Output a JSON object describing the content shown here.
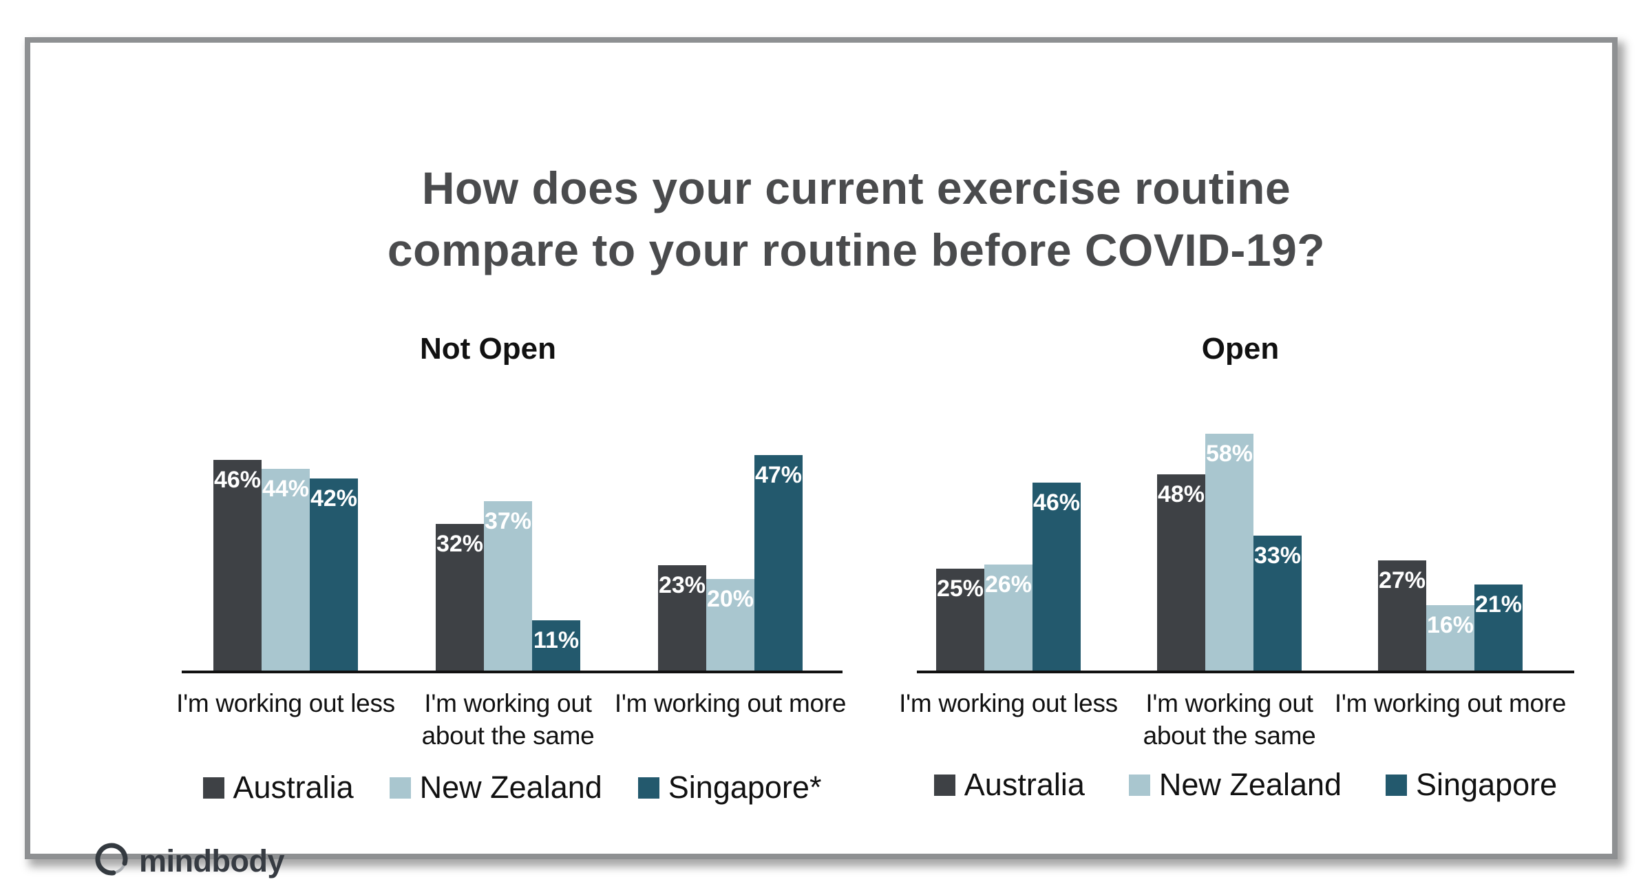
{
  "title": {
    "line1": "How does your current exercise routine",
    "line2": "compare to your routine before COVID-19?"
  },
  "logo": {
    "text": "mindbody",
    "icon": "enso-circle-icon"
  },
  "colors": {
    "australia": "#3E4145",
    "new_zealand": "#A9C6CF",
    "singapore": "#23596D",
    "title_text": "#4A4B4D",
    "card_border": "#8E9092",
    "axis_line": "#111111",
    "value_label_text": "#FFFFFF"
  },
  "chart_data": [
    {
      "type": "bar",
      "title": "Not Open",
      "categories": [
        "I'm working out less",
        "I'm working out about the same",
        "I'm working out more"
      ],
      "categories_lines": [
        [
          "I'm working out less"
        ],
        [
          "I'm working out",
          "about the same"
        ],
        [
          "I'm working out more"
        ]
      ],
      "series": [
        {
          "name": "Australia",
          "color": "#3E4145",
          "values": [
            46,
            32,
            23
          ]
        },
        {
          "name": "New Zealand",
          "color": "#A9C6CF",
          "values": [
            44,
            37,
            20
          ]
        },
        {
          "name": "Singapore",
          "color": "#23596D",
          "values": [
            42,
            11,
            47
          ]
        }
      ],
      "value_suffix": "%",
      "value_labels": "inside-top, white, bold",
      "legend": [
        "Australia",
        "New Zealand",
        "Singapore*"
      ],
      "legend_position": "bottom",
      "grid": false,
      "y_axis_visible": false,
      "ylim": [
        0,
        50
      ]
    },
    {
      "type": "bar",
      "title": "Open",
      "categories": [
        "I'm working out less",
        "I'm working out about the same",
        "I'm working out more"
      ],
      "categories_lines": [
        [
          "I'm working out less"
        ],
        [
          "I'm working out",
          "about the same"
        ],
        [
          "I'm working out more"
        ]
      ],
      "series": [
        {
          "name": "Australia",
          "color": "#3E4145",
          "values": [
            25,
            48,
            27
          ]
        },
        {
          "name": "New Zealand",
          "color": "#A9C6CF",
          "values": [
            26,
            58,
            16
          ]
        },
        {
          "name": "Singapore",
          "color": "#23596D",
          "values": [
            46,
            33,
            21
          ]
        }
      ],
      "value_suffix": "%",
      "value_labels": "inside-top, white, bold",
      "legend": [
        "Australia",
        "New Zealand",
        "Singapore"
      ],
      "legend_position": "bottom",
      "grid": false,
      "y_axis_visible": false,
      "ylim": [
        0,
        60
      ]
    }
  ]
}
